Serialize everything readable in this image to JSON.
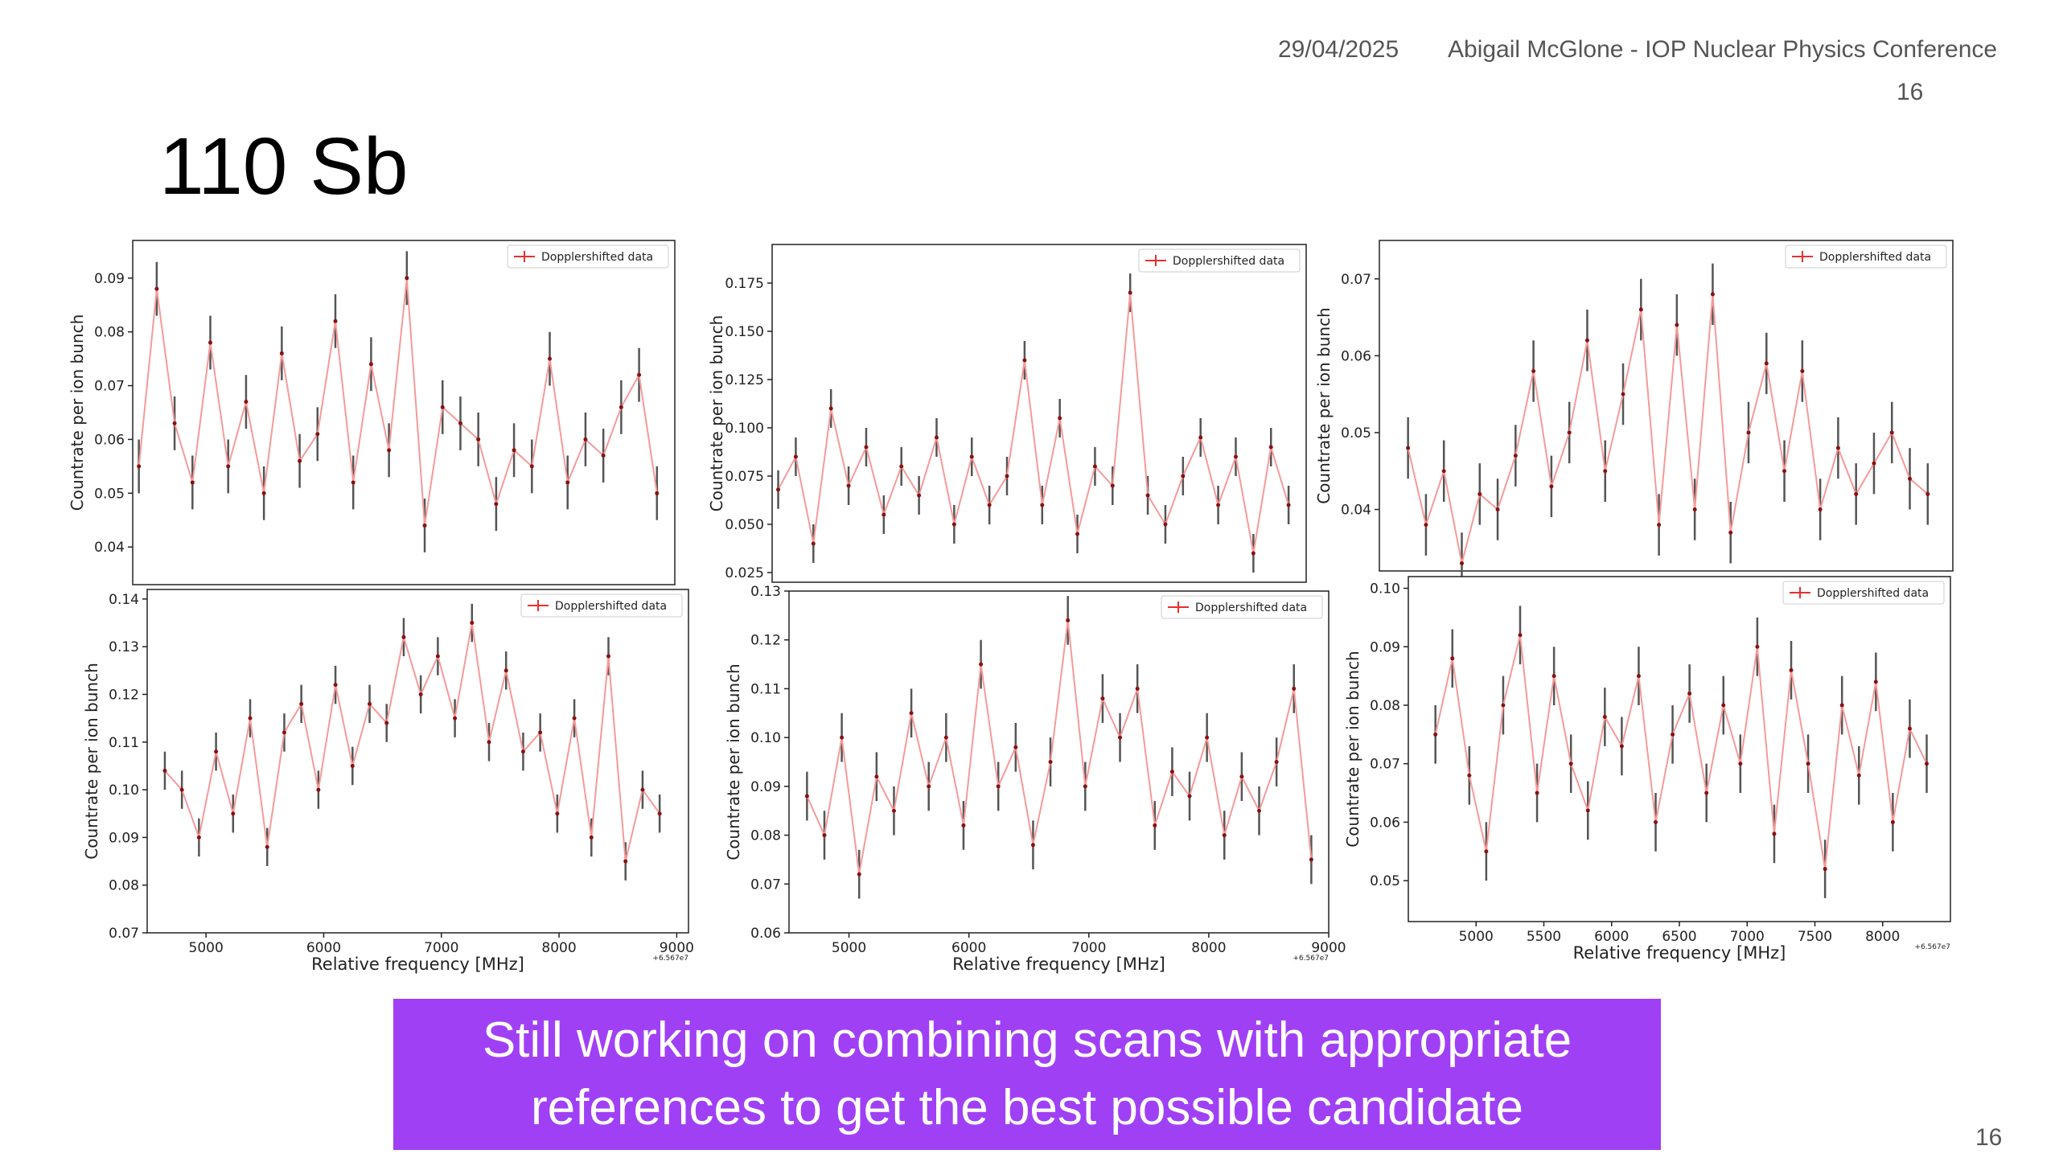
{
  "header": {
    "date": "29/04/2025",
    "author": "Abigail McGlone - IOP Nuclear Physics Conference",
    "page_number": "16"
  },
  "title": "110 Sb",
  "chart_data": [
    {
      "type": "errorbar",
      "ylabel": "Countrate per ion bunch",
      "legend": "Dopplershifted data",
      "color": "#e83030",
      "line_color": "#f59a9a",
      "err_color": "#555555",
      "x": [
        4650,
        4795,
        4940,
        5085,
        5230,
        5375,
        5520,
        5665,
        5810,
        5955,
        6100,
        6245,
        6390,
        6535,
        6680,
        6825,
        6970,
        7115,
        7260,
        7405,
        7550,
        7695,
        7840,
        7985,
        8130,
        8275,
        8420,
        8565,
        8710,
        8855
      ],
      "values": [
        0.055,
        0.088,
        0.063,
        0.052,
        0.078,
        0.055,
        0.067,
        0.05,
        0.076,
        0.056,
        0.061,
        0.082,
        0.052,
        0.074,
        0.058,
        0.09,
        0.044,
        0.066,
        0.063,
        0.06,
        0.048,
        0.058,
        0.055,
        0.075,
        0.052,
        0.06,
        0.057,
        0.066,
        0.072,
        0.05
      ],
      "yerr": 0.005,
      "xlim": [
        4600,
        9000
      ],
      "ylim": [
        0.033,
        0.097
      ],
      "yticks": [
        0.04,
        0.05,
        0.06,
        0.07,
        0.08,
        0.09
      ]
    },
    {
      "type": "errorbar",
      "ylabel": "Countrate per ion bunch",
      "legend": "Dopplershifted data",
      "color": "#e83030",
      "line_color": "#f59a9a",
      "err_color": "#555555",
      "x": [
        4650,
        4795,
        4940,
        5085,
        5230,
        5375,
        5520,
        5665,
        5810,
        5955,
        6100,
        6245,
        6390,
        6535,
        6680,
        6825,
        6970,
        7115,
        7260,
        7405,
        7550,
        7695,
        7840,
        7985,
        8130,
        8275,
        8420,
        8565,
        8710,
        8855
      ],
      "values": [
        0.068,
        0.085,
        0.04,
        0.11,
        0.07,
        0.09,
        0.055,
        0.08,
        0.065,
        0.095,
        0.05,
        0.085,
        0.06,
        0.075,
        0.135,
        0.06,
        0.105,
        0.045,
        0.08,
        0.07,
        0.17,
        0.065,
        0.05,
        0.075,
        0.095,
        0.06,
        0.085,
        0.035,
        0.09,
        0.06
      ],
      "yerr": 0.01,
      "xlim": [
        4600,
        9000
      ],
      "ylim": [
        0.02,
        0.195
      ],
      "yticks": [
        0.025,
        {
          "value": 0.05,
          "label": "0.050"
        },
        0.075,
        {
          "value": 0.1,
          "label": "0.100"
        },
        0.125,
        {
          "value": 0.15,
          "label": "0.150"
        },
        0.175
      ]
    },
    {
      "type": "errorbar",
      "ylabel": "Countrate per ion bunch",
      "legend": "Dopplershifted data",
      "color": "#e83030",
      "line_color": "#f59a9a",
      "err_color": "#555555",
      "x": [
        4700,
        4825,
        4950,
        5075,
        5200,
        5325,
        5450,
        5575,
        5700,
        5825,
        5950,
        6075,
        6200,
        6325,
        6450,
        6575,
        6700,
        6825,
        6950,
        7075,
        7200,
        7325,
        7450,
        7575,
        7700,
        7825,
        7950,
        8075,
        8200,
        8325
      ],
      "values": [
        0.048,
        0.038,
        0.045,
        0.033,
        0.042,
        0.04,
        0.047,
        0.058,
        0.043,
        0.05,
        0.062,
        0.045,
        0.055,
        0.066,
        0.038,
        0.064,
        0.04,
        0.068,
        0.037,
        0.05,
        0.059,
        0.045,
        0.058,
        0.04,
        0.048,
        0.042,
        0.046,
        0.05,
        0.044,
        0.042
      ],
      "yerr": 0.004,
      "xlim": [
        4500,
        8500
      ],
      "ylim": [
        0.032,
        0.075
      ],
      "yticks": [
        0.04,
        0.05,
        0.06,
        0.07
      ]
    },
    {
      "type": "errorbar",
      "ylabel": "Countrate per ion bunch",
      "xlabel": "Relative frequency [MHz]",
      "x_offset_label": "+6.567e7",
      "legend": "Dopplershifted data",
      "color": "#e83030",
      "line_color": "#f59a9a",
      "err_color": "#555555",
      "x": [
        4650,
        4795,
        4940,
        5085,
        5230,
        5375,
        5520,
        5665,
        5810,
        5955,
        6100,
        6245,
        6390,
        6535,
        6680,
        6825,
        6970,
        7115,
        7260,
        7405,
        7550,
        7695,
        7840,
        7985,
        8130,
        8275,
        8420,
        8565,
        8710,
        8855
      ],
      "values": [
        0.104,
        0.1,
        0.09,
        0.108,
        0.095,
        0.115,
        0.088,
        0.112,
        0.118,
        0.1,
        0.122,
        0.105,
        0.118,
        0.114,
        0.132,
        0.12,
        0.128,
        0.115,
        0.135,
        0.11,
        0.125,
        0.108,
        0.112,
        0.095,
        0.115,
        0.09,
        0.128,
        0.085,
        0.1,
        0.095
      ],
      "yerr": 0.004,
      "xlim": [
        4500,
        9100
      ],
      "ylim": [
        0.07,
        0.142
      ],
      "xticks": [
        5000,
        6000,
        7000,
        8000,
        9000
      ],
      "yticks": [
        0.07,
        0.08,
        0.09,
        {
          "value": 0.1,
          "label": "0.10"
        },
        0.11,
        0.12,
        0.13,
        0.14
      ]
    },
    {
      "type": "errorbar",
      "ylabel": "Countrate per ion bunch",
      "xlabel": "Relative frequency [MHz]",
      "x_offset_label": "+6.567e7",
      "legend": "Dopplershifted data",
      "color": "#e83030",
      "line_color": "#f59a9a",
      "err_color": "#555555",
      "x": [
        4650,
        4795,
        4940,
        5085,
        5230,
        5375,
        5520,
        5665,
        5810,
        5955,
        6100,
        6245,
        6390,
        6535,
        6680,
        6825,
        6970,
        7115,
        7260,
        7405,
        7550,
        7695,
        7840,
        7985,
        8130,
        8275,
        8420,
        8565,
        8710,
        8855
      ],
      "values": [
        0.088,
        0.08,
        0.1,
        0.072,
        0.092,
        0.085,
        0.105,
        0.09,
        0.1,
        0.082,
        0.115,
        0.09,
        0.098,
        0.078,
        0.095,
        0.124,
        0.09,
        0.108,
        0.1,
        0.11,
        0.082,
        0.093,
        0.088,
        0.1,
        0.08,
        0.092,
        0.085,
        0.095,
        0.11,
        0.075
      ],
      "yerr": 0.005,
      "xlim": [
        4500,
        9000
      ],
      "ylim": [
        0.06,
        0.13
      ],
      "xticks": [
        5000,
        6000,
        7000,
        8000,
        9000
      ],
      "yticks": [
        0.06,
        0.07,
        0.08,
        0.09,
        {
          "value": 0.1,
          "label": "0.10"
        },
        0.11,
        0.12,
        0.13
      ]
    },
    {
      "type": "errorbar",
      "ylabel": "Countrate per ion bunch",
      "xlabel": "Relative frequency [MHz]",
      "x_offset_label": "+6.567e7",
      "legend": "Dopplershifted data",
      "color": "#e83030",
      "line_color": "#f59a9a",
      "err_color": "#555555",
      "x": [
        4700,
        4825,
        4950,
        5075,
        5200,
        5325,
        5450,
        5575,
        5700,
        5825,
        5950,
        6075,
        6200,
        6325,
        6450,
        6575,
        6700,
        6825,
        6950,
        7075,
        7200,
        7325,
        7450,
        7575,
        7700,
        7825,
        7950,
        8075,
        8200,
        8325
      ],
      "values": [
        0.075,
        0.088,
        0.068,
        0.055,
        0.08,
        0.092,
        0.065,
        0.085,
        0.07,
        0.062,
        0.078,
        0.073,
        0.085,
        0.06,
        0.075,
        0.082,
        0.065,
        0.08,
        0.07,
        0.09,
        0.058,
        0.086,
        0.07,
        0.052,
        0.08,
        0.068,
        0.084,
        0.06,
        0.076,
        0.07
      ],
      "yerr": 0.005,
      "xlim": [
        4500,
        8500
      ],
      "ylim": [
        0.043,
        0.102
      ],
      "xticks": [
        5000,
        5500,
        6000,
        6500,
        7000,
        7500,
        8000
      ],
      "yticks": [
        0.05,
        0.06,
        0.07,
        0.08,
        0.09,
        {
          "value": 0.1,
          "label": "0.10"
        }
      ]
    }
  ],
  "banner": "Still working on combining scans with appropriate references to get the best possible candidate",
  "footer": {
    "page_number": "16"
  }
}
